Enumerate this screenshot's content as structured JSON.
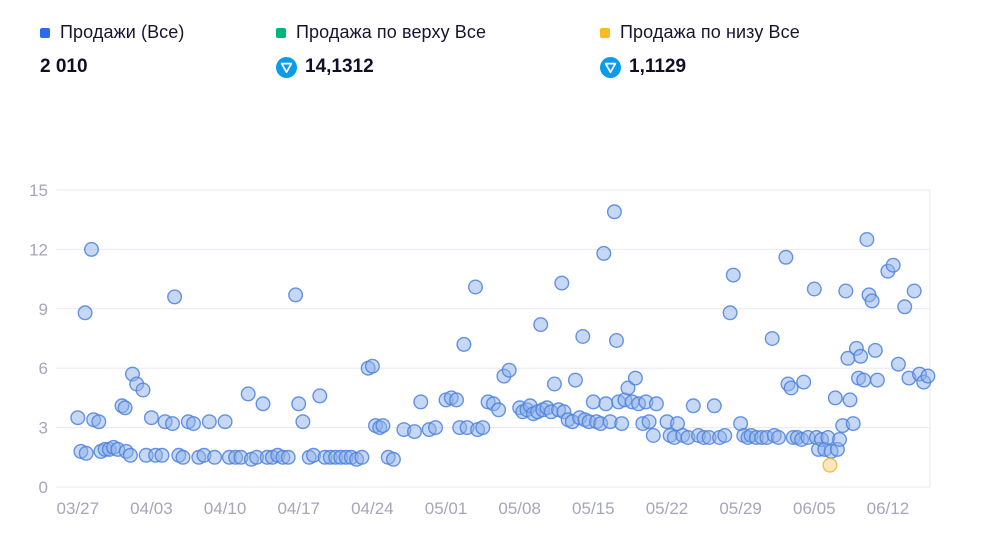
{
  "legend": {
    "items": [
      {
        "label": "Продажи (Все)",
        "value": "2 010",
        "swatch_color": "#2b6be8",
        "coin_icon": false
      },
      {
        "label": "Продажа по верху Все",
        "value": "14,1312",
        "swatch_color": "#00b67c",
        "coin_icon": true
      },
      {
        "label": "Продажа по низу Все",
        "value": "1,1129",
        "swatch_color": "#f8ba26",
        "coin_icon": true
      }
    ],
    "coin_icon_color": "#0b9be8"
  },
  "chart_data": {
    "type": "scatter",
    "title": "",
    "xlabel": "",
    "ylabel": "",
    "grid": "horizontal",
    "legend_position": "top",
    "colors": {
      "grid": "#e8e8f1",
      "tick_label": "#a6a6ba"
    },
    "x_axis": {
      "offset_unit": "days since 03/27",
      "range": [
        -1.5,
        81
      ],
      "tick_offsets": [
        0,
        7,
        14,
        21,
        28,
        35,
        42,
        49,
        56,
        63,
        70,
        77
      ],
      "tick_labels": [
        "03/27",
        "04/03",
        "04/10",
        "04/17",
        "04/24",
        "05/01",
        "05/08",
        "05/15",
        "05/22",
        "05/29",
        "06/05",
        "06/12"
      ]
    },
    "y_axis": {
      "range": [
        0,
        15
      ],
      "ticks": [
        0,
        3,
        6,
        9,
        12,
        15
      ]
    },
    "series": [
      {
        "name": "Продажи (Все)",
        "color": "#4d82dd",
        "fill": "#8fb1ea",
        "points": [
          [
            0,
            3.5
          ],
          [
            0.3,
            1.8
          ],
          [
            0.7,
            8.8
          ],
          [
            0.8,
            1.7
          ],
          [
            1.3,
            12
          ],
          [
            1.5,
            3.4
          ],
          [
            2,
            3.3
          ],
          [
            2.2,
            1.8
          ],
          [
            2.6,
            1.9
          ],
          [
            3,
            1.9
          ],
          [
            3.4,
            2
          ],
          [
            3.8,
            1.9
          ],
          [
            4.2,
            4.1
          ],
          [
            4.5,
            4
          ],
          [
            4.6,
            1.8
          ],
          [
            5,
            1.6
          ],
          [
            5.2,
            5.7
          ],
          [
            5.6,
            5.2
          ],
          [
            6.2,
            4.9
          ],
          [
            6.5,
            1.6
          ],
          [
            7,
            3.5
          ],
          [
            7.4,
            1.6
          ],
          [
            8,
            1.6
          ],
          [
            8.3,
            3.3
          ],
          [
            9,
            3.2
          ],
          [
            9.2,
            9.6
          ],
          [
            9.6,
            1.6
          ],
          [
            10,
            1.5
          ],
          [
            10.5,
            3.3
          ],
          [
            11,
            3.2
          ],
          [
            11.5,
            1.5
          ],
          [
            12,
            1.6
          ],
          [
            12.5,
            3.3
          ],
          [
            13,
            1.5
          ],
          [
            14,
            3.3
          ],
          [
            14.4,
            1.5
          ],
          [
            15,
            1.5
          ],
          [
            15.5,
            1.5
          ],
          [
            16.2,
            4.7
          ],
          [
            16.5,
            1.4
          ],
          [
            17,
            1.5
          ],
          [
            17.6,
            4.2
          ],
          [
            18,
            1.5
          ],
          [
            18.5,
            1.5
          ],
          [
            19,
            1.6
          ],
          [
            19.5,
            1.5
          ],
          [
            20,
            1.5
          ],
          [
            20.7,
            9.7
          ],
          [
            21,
            4.2
          ],
          [
            21.4,
            3.3
          ],
          [
            22,
            1.5
          ],
          [
            22.4,
            1.6
          ],
          [
            23,
            4.6
          ],
          [
            23.5,
            1.5
          ],
          [
            24,
            1.5
          ],
          [
            24.5,
            1.5
          ],
          [
            25,
            1.5
          ],
          [
            25.5,
            1.5
          ],
          [
            26,
            1.5
          ],
          [
            26.5,
            1.4
          ],
          [
            27,
            1.5
          ],
          [
            27.6,
            6
          ],
          [
            28,
            6.1
          ],
          [
            28.3,
            3.1
          ],
          [
            28.7,
            3
          ],
          [
            29,
            3.1
          ],
          [
            29.5,
            1.5
          ],
          [
            30,
            1.4
          ],
          [
            31,
            2.9
          ],
          [
            32,
            2.8
          ],
          [
            32.6,
            4.3
          ],
          [
            33.4,
            2.9
          ],
          [
            34,
            3
          ],
          [
            35,
            4.4
          ],
          [
            35.5,
            4.5
          ],
          [
            36,
            4.4
          ],
          [
            36.3,
            3
          ],
          [
            36.7,
            7.2
          ],
          [
            37,
            3
          ],
          [
            37.8,
            10.1
          ],
          [
            38,
            2.9
          ],
          [
            38.5,
            3
          ],
          [
            39,
            4.3
          ],
          [
            39.5,
            4.2
          ],
          [
            40,
            3.9
          ],
          [
            40.5,
            5.6
          ],
          [
            41,
            5.9
          ],
          [
            42,
            4
          ],
          [
            42.3,
            3.8
          ],
          [
            42.7,
            3.9
          ],
          [
            43,
            4.1
          ],
          [
            43.3,
            3.7
          ],
          [
            43.7,
            3.8
          ],
          [
            44,
            8.2
          ],
          [
            44.2,
            3.9
          ],
          [
            44.6,
            4
          ],
          [
            45,
            3.8
          ],
          [
            45.3,
            5.2
          ],
          [
            45.7,
            3.9
          ],
          [
            46,
            10.3
          ],
          [
            46.2,
            3.8
          ],
          [
            46.6,
            3.4
          ],
          [
            47,
            3.3
          ],
          [
            47.3,
            5.4
          ],
          [
            47.7,
            3.5
          ],
          [
            48,
            7.6
          ],
          [
            48.2,
            3.4
          ],
          [
            48.6,
            3.3
          ],
          [
            49,
            4.3
          ],
          [
            49.3,
            3.3
          ],
          [
            49.7,
            3.2
          ],
          [
            50,
            11.8
          ],
          [
            50.2,
            4.2
          ],
          [
            50.6,
            3.3
          ],
          [
            51,
            13.9
          ],
          [
            51.2,
            7.4
          ],
          [
            51.4,
            4.3
          ],
          [
            51.7,
            3.2
          ],
          [
            52,
            4.4
          ],
          [
            52.3,
            5
          ],
          [
            52.7,
            4.3
          ],
          [
            53,
            5.5
          ],
          [
            53.3,
            4.2
          ],
          [
            53.7,
            3.2
          ],
          [
            54,
            4.3
          ],
          [
            54.3,
            3.3
          ],
          [
            54.7,
            2.6
          ],
          [
            55,
            4.2
          ],
          [
            56,
            3.3
          ],
          [
            56.3,
            2.6
          ],
          [
            56.7,
            2.5
          ],
          [
            57,
            3.2
          ],
          [
            57.5,
            2.6
          ],
          [
            58,
            2.5
          ],
          [
            58.5,
            4.1
          ],
          [
            59,
            2.6
          ],
          [
            59.5,
            2.5
          ],
          [
            60,
            2.5
          ],
          [
            60.5,
            4.1
          ],
          [
            61,
            2.5
          ],
          [
            61.5,
            2.6
          ],
          [
            62,
            8.8
          ],
          [
            62.3,
            10.7
          ],
          [
            63,
            3.2
          ],
          [
            63.3,
            2.6
          ],
          [
            63.7,
            2.5
          ],
          [
            64,
            2.6
          ],
          [
            64.5,
            2.5
          ],
          [
            65,
            2.5
          ],
          [
            65.5,
            2.5
          ],
          [
            66,
            7.5
          ],
          [
            66.2,
            2.6
          ],
          [
            66.6,
            2.5
          ],
          [
            67.3,
            11.6
          ],
          [
            67.5,
            5.2
          ],
          [
            67.8,
            5
          ],
          [
            68,
            2.5
          ],
          [
            68.4,
            2.5
          ],
          [
            68.8,
            2.4
          ],
          [
            69,
            5.3
          ],
          [
            69.4,
            2.5
          ],
          [
            70,
            10
          ],
          [
            70.2,
            2.5
          ],
          [
            70.4,
            1.9
          ],
          [
            70.7,
            2.4
          ],
          [
            71,
            1.9
          ],
          [
            71.3,
            2.5
          ],
          [
            71.6,
            1.8
          ],
          [
            72,
            4.5
          ],
          [
            72.2,
            1.9
          ],
          [
            72.4,
            2.4
          ],
          [
            72.7,
            3.1
          ],
          [
            73,
            9.9
          ],
          [
            73.2,
            6.5
          ],
          [
            73.4,
            4.4
          ],
          [
            73.7,
            3.2
          ],
          [
            74,
            7
          ],
          [
            74.2,
            5.5
          ],
          [
            74.4,
            6.6
          ],
          [
            74.7,
            5.4
          ],
          [
            75,
            12.5
          ],
          [
            75.2,
            9.7
          ],
          [
            75.5,
            9.4
          ],
          [
            75.8,
            6.9
          ],
          [
            76,
            5.4
          ],
          [
            77,
            10.9
          ],
          [
            77.5,
            11.2
          ],
          [
            78,
            6.2
          ],
          [
            78.6,
            9.1
          ],
          [
            79,
            5.5
          ],
          [
            79.5,
            9.9
          ],
          [
            80,
            5.7
          ],
          [
            80.4,
            5.3
          ],
          [
            80.8,
            5.6
          ]
        ]
      },
      {
        "name": "Продажа по низу Все",
        "color": "#eab838",
        "fill": "#f6cf7a",
        "points": [
          [
            71.5,
            1.1
          ]
        ]
      }
    ]
  }
}
